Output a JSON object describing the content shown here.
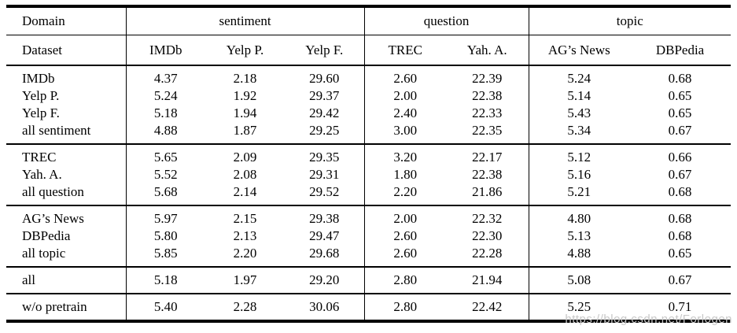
{
  "table": {
    "domain_label": "Domain",
    "dataset_label": "Dataset",
    "groups": [
      {
        "label": "sentiment"
      },
      {
        "label": "question"
      },
      {
        "label": "topic"
      }
    ],
    "columns": [
      "IMDb",
      "Yelp P.",
      "Yelp F.",
      "TREC",
      "Yah. A.",
      "AG’s News",
      "DBPedia"
    ],
    "sections": [
      {
        "rows": [
          {
            "label": "IMDb",
            "cells": [
              "4.37",
              "2.18",
              "29.60",
              "2.60",
              "22.39",
              "5.24",
              "0.68"
            ],
            "bold": [
              0
            ]
          },
          {
            "label": "Yelp P.",
            "cells": [
              "5.24",
              "1.92",
              "29.37",
              "2.00",
              "22.38",
              "5.14",
              "0.65"
            ],
            "bold": [
              6
            ]
          },
          {
            "label": "Yelp F.",
            "cells": [
              "5.18",
              "1.94",
              "29.42",
              "2.40",
              "22.33",
              "5.43",
              "0.65"
            ],
            "bold": [
              6
            ]
          },
          {
            "label": "all sentiment",
            "cells": [
              "4.88",
              "1.87",
              "29.25",
              "3.00",
              "22.35",
              "5.34",
              "0.67"
            ],
            "bold": [
              1
            ]
          }
        ]
      },
      {
        "rows": [
          {
            "label": "TREC",
            "cells": [
              "5.65",
              "2.09",
              "29.35",
              "3.20",
              "22.17",
              "5.12",
              "0.66"
            ],
            "bold": []
          },
          {
            "label": "Yah. A.",
            "cells": [
              "5.52",
              "2.08",
              "29.31",
              "1.80",
              "22.38",
              "5.16",
              "0.67"
            ],
            "bold": [
              3
            ]
          },
          {
            "label": "all question",
            "cells": [
              "5.68",
              "2.14",
              "29.52",
              "2.20",
              "21.86",
              "5.21",
              "0.68"
            ],
            "bold": [
              4
            ]
          }
        ]
      },
      {
        "rows": [
          {
            "label": "AG’s News",
            "cells": [
              "5.97",
              "2.15",
              "29.38",
              "2.00",
              "22.32",
              "4.80",
              "0.68"
            ],
            "bold": [
              5
            ]
          },
          {
            "label": "DBPedia",
            "cells": [
              "5.80",
              "2.13",
              "29.47",
              "2.60",
              "22.30",
              "5.13",
              "0.68"
            ],
            "bold": []
          },
          {
            "label": "all topic",
            "cells": [
              "5.85",
              "2.20",
              "29.68",
              "2.60",
              "22.28",
              "4.88",
              "0.65"
            ],
            "bold": [
              6
            ]
          }
        ]
      },
      {
        "rows": [
          {
            "label": "all",
            "cells": [
              "5.18",
              "1.97",
              "29.20",
              "2.80",
              "21.94",
              "5.08",
              "0.67"
            ],
            "bold": [
              2
            ]
          }
        ]
      },
      {
        "rows": [
          {
            "label": "w/o pretrain",
            "cells": [
              "5.40",
              "2.28",
              "30.06",
              "2.80",
              "22.42",
              "5.25",
              "0.71"
            ],
            "bold": []
          }
        ]
      }
    ]
  },
  "watermark": {
    "text": "https://blog.csdn.net/Forlogen",
    "color": "#c9c9c9"
  }
}
